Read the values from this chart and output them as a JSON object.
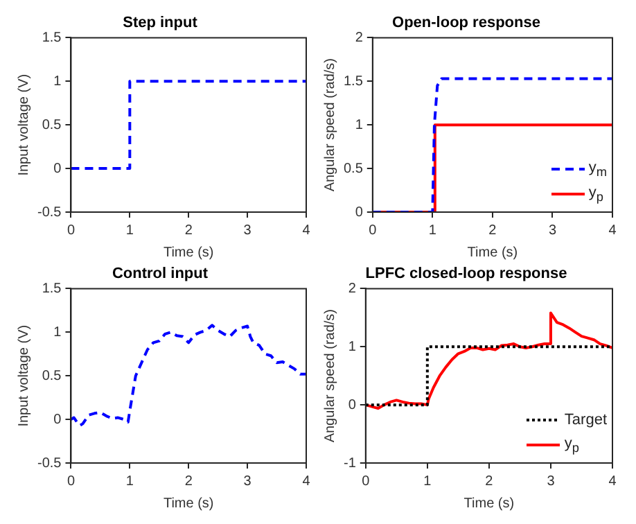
{
  "chart_data": [
    {
      "type": "line",
      "title": "Step input",
      "xlabel": "Time (s)",
      "ylabel": "Input voltage (V)",
      "xlim": [
        0,
        4
      ],
      "xticks": [
        0,
        1,
        2,
        3,
        4
      ],
      "ylim": [
        -0.5,
        1.5
      ],
      "yticks": [
        -0.5,
        0,
        0.5,
        1,
        1.5
      ],
      "grid": false,
      "legend": false,
      "marker": "none",
      "line_style": "dashed",
      "series": [
        {
          "color": "#0000ff",
          "x": [
            0,
            1,
            1,
            4
          ],
          "values": [
            0,
            0,
            1,
            1
          ]
        }
      ]
    },
    {
      "type": "line",
      "title": "Open-loop response",
      "xlabel": "Time (s)",
      "ylabel": "Angular speed (rad/s)",
      "xlim": [
        0,
        4
      ],
      "xticks": [
        0,
        1,
        2,
        3,
        4
      ],
      "ylim": [
        0,
        2
      ],
      "yticks": [
        0,
        0.5,
        1,
        1.5,
        2
      ],
      "grid": false,
      "legend": "bottom right",
      "marker": "none",
      "series": [
        {
          "name": "y$_{m}$",
          "color": "#0000ff",
          "line_style": "dashed",
          "x": [
            0,
            1,
            1.03,
            1.08,
            1.15,
            4
          ],
          "values": [
            0,
            0,
            1.0,
            1.45,
            1.53,
            1.53
          ]
        },
        {
          "name": "y$_{p}$",
          "color": "#ff0000",
          "line_style": "solid",
          "x": [
            0,
            1.02,
            1.04,
            4
          ],
          "values": [
            0,
            0,
            1,
            1
          ]
        }
      ]
    },
    {
      "type": "line",
      "title": "Control input",
      "xlabel": "Time (s)",
      "ylabel": "Input voltage (V)",
      "xlim": [
        0,
        4
      ],
      "xticks": [
        0,
        1,
        2,
        3,
        4
      ],
      "ylim": [
        -0.5,
        1.5
      ],
      "yticks": [
        -0.5,
        0,
        0.5,
        1,
        1.5
      ],
      "grid": false,
      "legend": false,
      "marker": "none",
      "line_style": "dashed",
      "series": [
        {
          "color": "#0000ff",
          "x": [
            0,
            0.05,
            0.1,
            0.15,
            0.2,
            0.3,
            0.4,
            0.5,
            0.6,
            0.7,
            0.8,
            0.9,
            0.97,
            1.0,
            1.05,
            1.1,
            1.2,
            1.3,
            1.4,
            1.5,
            1.6,
            1.7,
            1.8,
            1.9,
            2.0,
            2.1,
            2.2,
            2.3,
            2.4,
            2.5,
            2.6,
            2.7,
            2.8,
            2.9,
            3.0,
            3.05,
            3.1,
            3.2,
            3.3,
            3.4,
            3.5,
            3.6,
            3.7,
            3.8,
            3.9,
            4.0
          ],
          "values": [
            0,
            0.02,
            -0.03,
            -0.07,
            -0.05,
            0.05,
            0.07,
            0.08,
            0.04,
            0.01,
            0.02,
            0,
            -0.03,
            0.1,
            0.3,
            0.5,
            0.65,
            0.8,
            0.88,
            0.9,
            0.98,
            1.0,
            0.96,
            0.95,
            0.88,
            0.97,
            1.0,
            1.02,
            1.08,
            1.02,
            0.98,
            0.95,
            1.02,
            1.05,
            1.07,
            0.95,
            0.88,
            0.85,
            0.75,
            0.73,
            0.65,
            0.66,
            0.62,
            0.58,
            0.52,
            0.52
          ]
        }
      ]
    },
    {
      "type": "line",
      "title": "LPFC closed-loop response",
      "xlabel": "Time (s)",
      "ylabel": "Angular speed (rad/s)",
      "xlim": [
        0,
        4
      ],
      "xticks": [
        0,
        1,
        2,
        3,
        4
      ],
      "ylim": [
        -1,
        2
      ],
      "yticks": [
        -1,
        0,
        1,
        2
      ],
      "grid": false,
      "legend": "bottom right",
      "marker": "none",
      "series": [
        {
          "name": "Target",
          "color": "#000000",
          "line_style": "dotted",
          "x": [
            0,
            1,
            1,
            4
          ],
          "values": [
            0,
            0,
            1,
            1
          ]
        },
        {
          "name": "y$_{p}$",
          "color": "#ff0000",
          "line_style": "solid",
          "x": [
            0,
            0.1,
            0.2,
            0.3,
            0.4,
            0.5,
            0.6,
            0.7,
            0.8,
            0.9,
            1.0,
            1.02,
            1.1,
            1.2,
            1.3,
            1.4,
            1.5,
            1.6,
            1.7,
            1.8,
            1.9,
            2.0,
            2.1,
            2.2,
            2.3,
            2.4,
            2.5,
            2.6,
            2.7,
            2.8,
            2.9,
            2.99,
            3.0,
            3.1,
            3.2,
            3.3,
            3.4,
            3.5,
            3.6,
            3.7,
            3.8,
            3.9,
            4.0
          ],
          "values": [
            0,
            -0.03,
            -0.06,
            0,
            0.05,
            0.08,
            0.05,
            0.03,
            0.02,
            0.02,
            0,
            0.1,
            0.3,
            0.5,
            0.65,
            0.78,
            0.88,
            0.92,
            0.98,
            0.98,
            0.95,
            0.97,
            0.95,
            1.02,
            1.03,
            1.05,
            1.0,
            0.98,
            1.0,
            1.03,
            1.05,
            1.05,
            1.58,
            1.42,
            1.38,
            1.32,
            1.25,
            1.18,
            1.15,
            1.12,
            1.05,
            1.02,
            0.98
          ]
        }
      ]
    }
  ]
}
